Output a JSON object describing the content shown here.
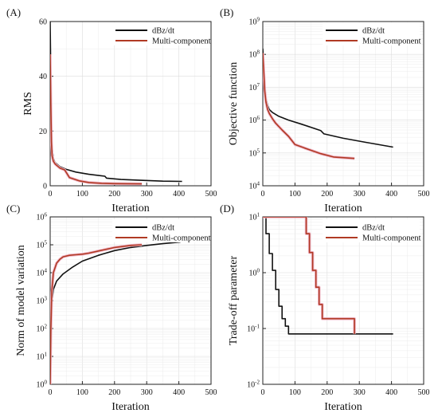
{
  "colors": {
    "series1": "#111111",
    "series2": "#b03a24",
    "series2_halo": "#f0b6c8"
  },
  "chart_data": [
    {
      "panel": "(A)",
      "type": "line",
      "xlabel": "Iteration",
      "ylabel": "RMS",
      "xlim": [
        0,
        500
      ],
      "ylim": [
        0,
        60
      ],
      "yscale": "linear",
      "xticks": [
        "0",
        "100",
        "200",
        "300",
        "400",
        "500"
      ],
      "yticks": [
        "0",
        "20",
        "40",
        "60"
      ],
      "grid": true,
      "legend": "top-right",
      "series": [
        {
          "name": "dBz/dt",
          "x": [
            0,
            2,
            4,
            6,
            10,
            15,
            20,
            30,
            50,
            80,
            120,
            170,
            175,
            220,
            280,
            350,
            410
          ],
          "y": [
            60,
            40,
            20,
            14,
            10,
            8.5,
            8,
            7,
            6,
            5,
            4.2,
            3.5,
            2.8,
            2.3,
            2,
            1.7,
            1.6
          ]
        },
        {
          "name": "Multi-component",
          "x": [
            0,
            2,
            4,
            6,
            10,
            15,
            20,
            30,
            45,
            60,
            90,
            120,
            160,
            200,
            285
          ],
          "y": [
            48,
            30,
            16,
            11,
            9,
            8,
            7.5,
            6.5,
            5.8,
            3,
            1.8,
            1.2,
            0.9,
            0.8,
            0.7
          ]
        }
      ]
    },
    {
      "panel": "(B)",
      "type": "line",
      "xlabel": "Iteration",
      "ylabel": "Objective function",
      "xlim": [
        0,
        500
      ],
      "ylim": [
        10000,
        1000000000
      ],
      "yscale": "log",
      "xticks": [
        "0",
        "100",
        "200",
        "300",
        "400",
        "500"
      ],
      "yticks": [
        "10^4",
        "10^5",
        "10^6",
        "10^7",
        "10^8",
        "10^9"
      ],
      "grid": true,
      "legend": "top-right",
      "series": [
        {
          "name": "dBz/dt",
          "x": [
            0,
            3,
            6,
            10,
            15,
            20,
            30,
            50,
            80,
            120,
            180,
            190,
            250,
            320,
            405
          ],
          "y": [
            150000000,
            40000000,
            10000000,
            4500000,
            2800000,
            2100000,
            1700000,
            1300000,
            1000000,
            750000,
            480000,
            380000,
            280000,
            210000,
            150000
          ]
        },
        {
          "name": "Multi-component",
          "x": [
            0,
            3,
            6,
            10,
            15,
            20,
            30,
            40,
            60,
            80,
            100,
            140,
            180,
            220,
            285
          ],
          "y": [
            110000000,
            30000000,
            8000000,
            3500000,
            2100000,
            1600000,
            1100000,
            800000,
            500000,
            320000,
            180000,
            130000,
            95000,
            75000,
            68000
          ]
        }
      ]
    },
    {
      "panel": "(C)",
      "type": "line",
      "xlabel": "Iteration",
      "ylabel": "Norm of model variation",
      "xlim": [
        0,
        500
      ],
      "ylim": [
        1,
        1000000
      ],
      "yscale": "log",
      "xticks": [
        "0",
        "100",
        "200",
        "300",
        "400",
        "500"
      ],
      "yticks": [
        "10^0",
        "10^1",
        "10^2",
        "10^3",
        "10^4",
        "10^5",
        "10^6"
      ],
      "grid": true,
      "legend": "top-right",
      "series": [
        {
          "name": "dBz/dt",
          "x": [
            0,
            2,
            5,
            10,
            20,
            40,
            70,
            100,
            150,
            200,
            250,
            300,
            350,
            405
          ],
          "y": [
            1,
            50,
            800,
            2500,
            5000,
            9000,
            16000,
            26000,
            42000,
            62000,
            80000,
            95000,
            110000,
            125000
          ]
        },
        {
          "name": "Multi-component",
          "x": [
            0,
            2,
            5,
            10,
            20,
            30,
            40,
            60,
            80,
            100,
            120,
            150,
            200,
            250,
            285
          ],
          "y": [
            1,
            80,
            2000,
            10000,
            22000,
            30000,
            37000,
            42000,
            44000,
            46000,
            50000,
            60000,
            80000,
            95000,
            100000
          ]
        }
      ]
    },
    {
      "panel": "(D)",
      "type": "line",
      "step": true,
      "xlabel": "Iteration",
      "ylabel": "Trade-off parameter",
      "xlim": [
        0,
        500
      ],
      "ylim": [
        0.01,
        10
      ],
      "yscale": "log",
      "xticks": [
        "0",
        "100",
        "200",
        "300",
        "400",
        "500"
      ],
      "yticks": [
        "10^-2",
        "10^-1",
        "10^0",
        "10^1"
      ],
      "grid": true,
      "legend": "top-right",
      "series": [
        {
          "name": "dBz/dt",
          "x": [
            0,
            10,
            20,
            30,
            40,
            50,
            60,
            70,
            80,
            405
          ],
          "y": [
            10,
            5,
            2.2,
            1.1,
            0.5,
            0.25,
            0.15,
            0.11,
            0.08,
            0.08
          ]
        },
        {
          "name": "Multi-component",
          "x": [
            0,
            125,
            135,
            145,
            155,
            165,
            175,
            185,
            285
          ],
          "y": [
            10,
            10,
            5,
            2.3,
            1.1,
            0.55,
            0.27,
            0.15,
            0.08
          ]
        }
      ]
    }
  ]
}
